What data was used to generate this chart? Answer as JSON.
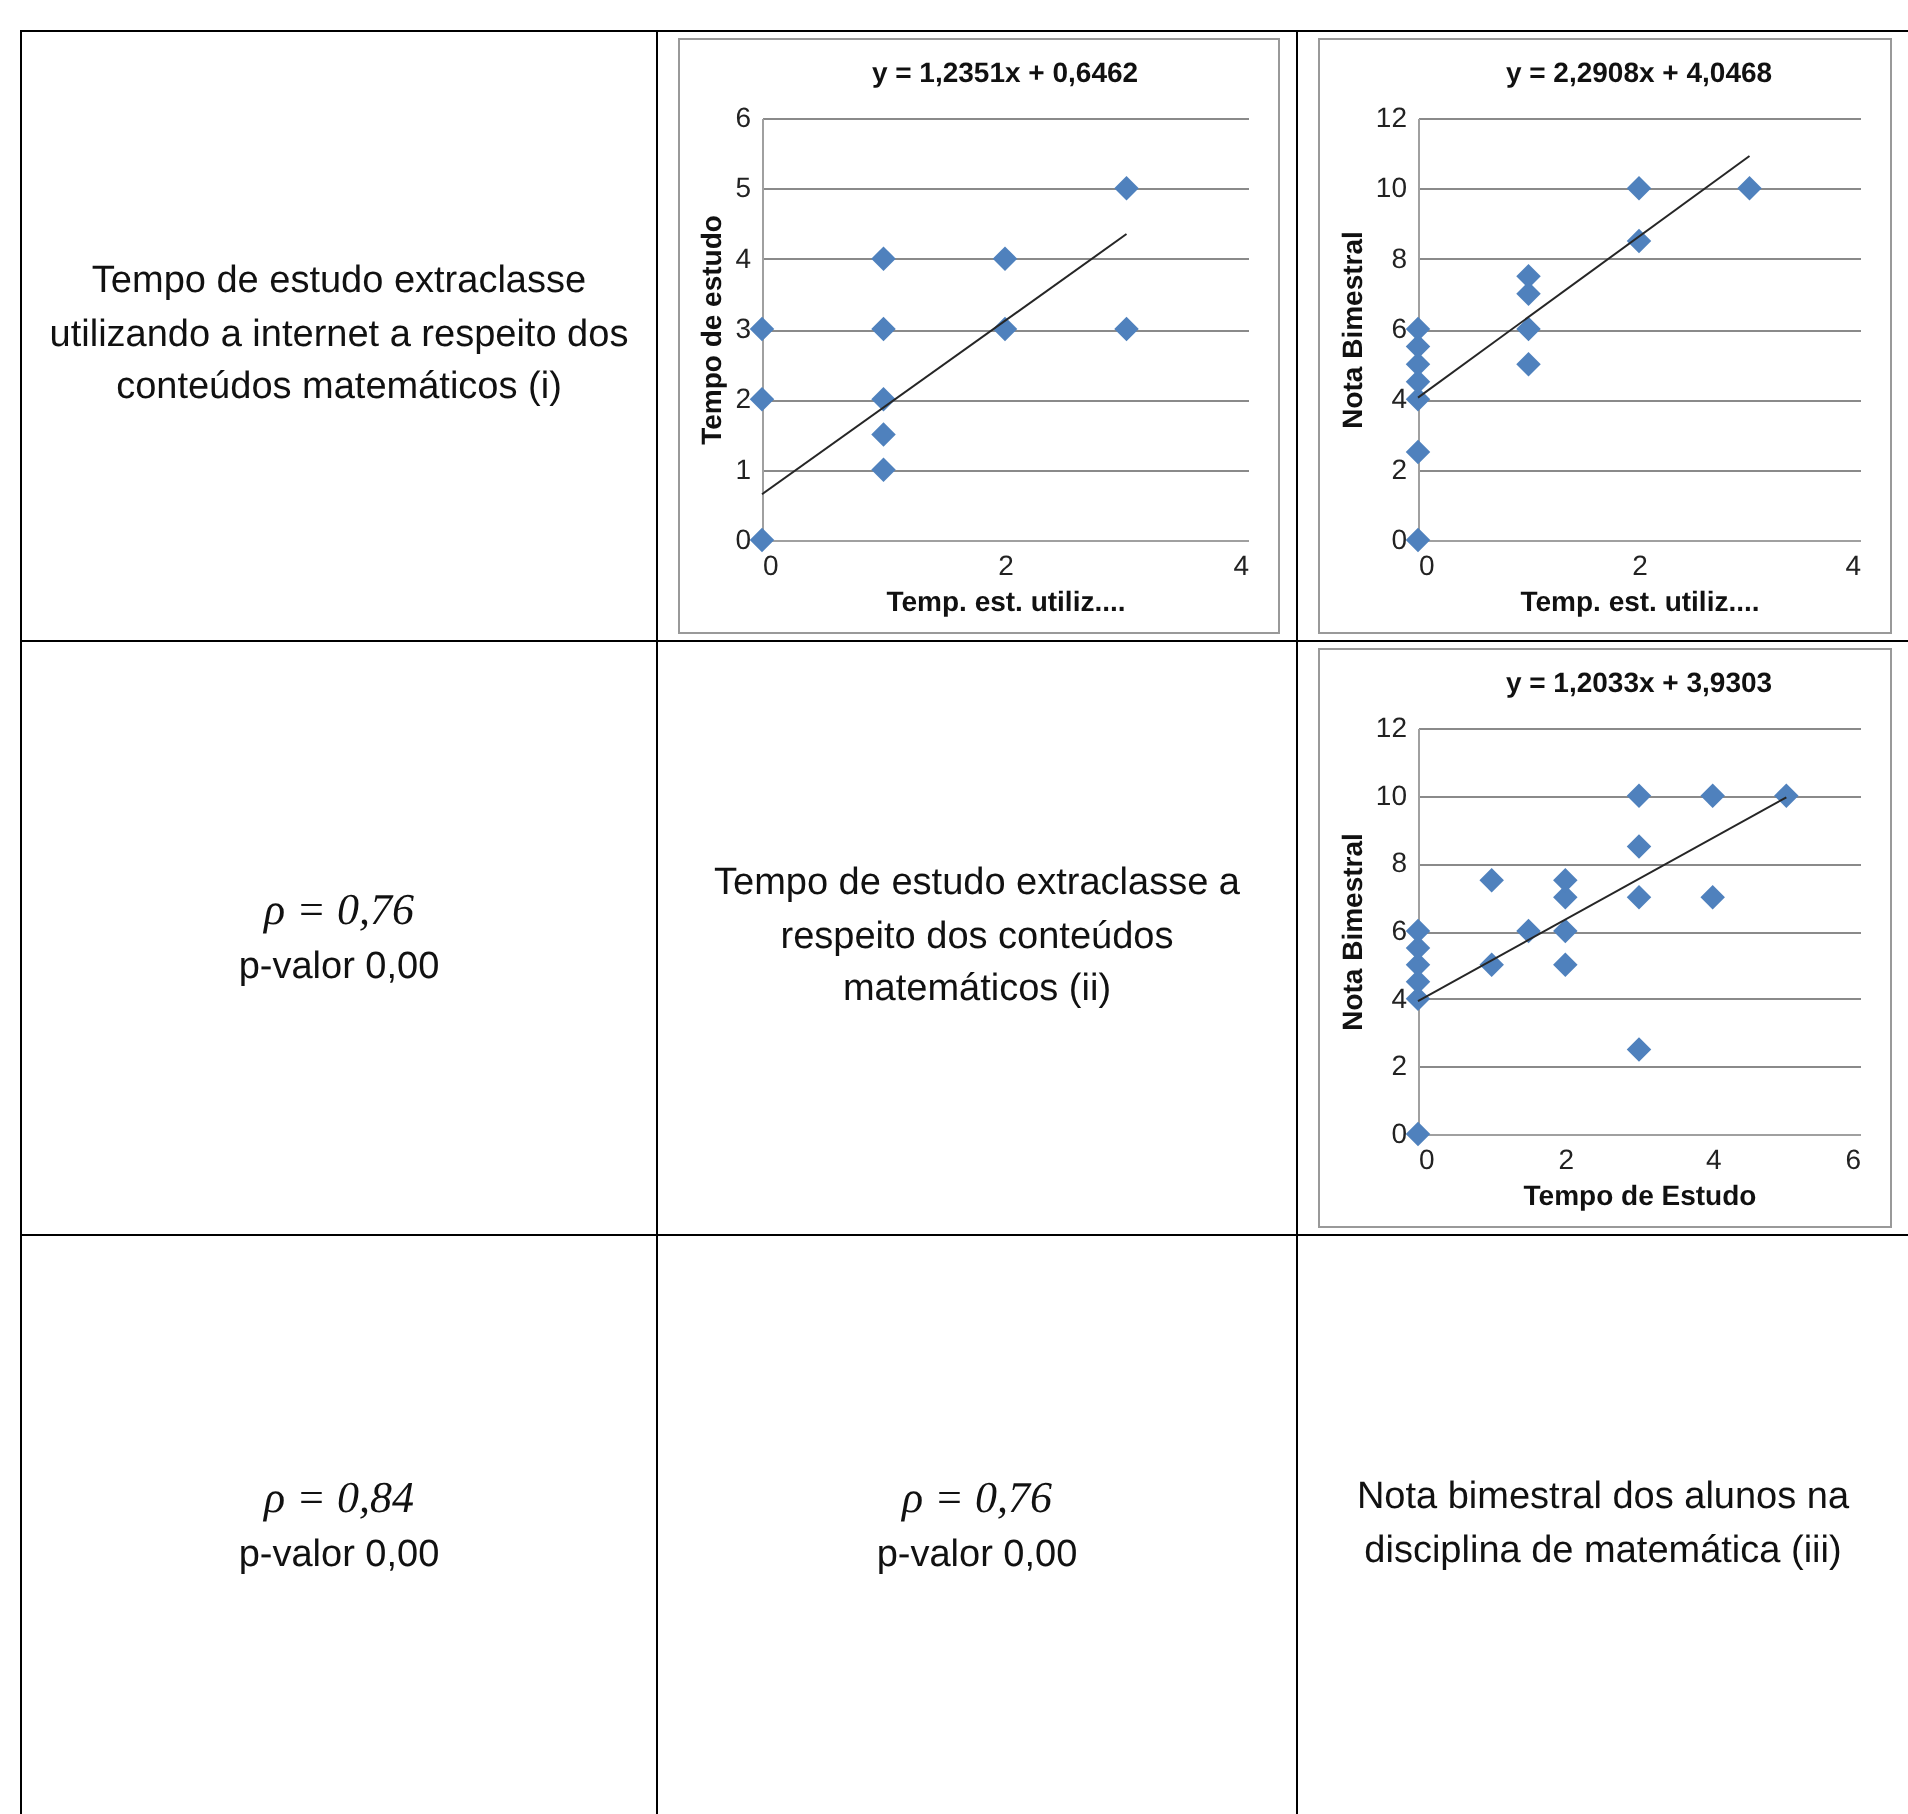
{
  "chart_data": [
    {
      "type": "other",
      "title": "Tempo de estudo extraclasse utilizando a internet a respeito dos conteúdos matemáticos (i)"
    },
    {
      "type": "scatter",
      "title": "y = 1,2351x + 0,6462",
      "xlabel": "Temp. est. utiliz....",
      "ylabel": "Tempo de estudo",
      "xlim": [
        0,
        4
      ],
      "xticks": [
        0,
        2,
        4
      ],
      "ylim": [
        0,
        6
      ],
      "yticks": [
        0,
        1,
        2,
        3,
        4,
        5,
        6
      ],
      "grid": "y",
      "series": [
        {
          "type": "scatter",
          "marker": "diamond",
          "color": "#4f81bd",
          "x": [
            0,
            0,
            0,
            1,
            1,
            1,
            1,
            1,
            2,
            2,
            3,
            3
          ],
          "values": [
            0,
            2,
            3,
            1,
            1.5,
            2,
            3,
            4,
            3,
            4,
            3,
            5
          ]
        },
        {
          "type": "line",
          "color": "#262626",
          "x": [
            0,
            3
          ],
          "values": [
            0.65,
            4.35
          ]
        }
      ]
    },
    {
      "type": "scatter",
      "title": "y = 2,2908x + 4,0468",
      "xlabel": "Temp. est. utiliz....",
      "ylabel": "Nota Bimestral",
      "xlim": [
        0,
        4
      ],
      "xticks": [
        0,
        2,
        4
      ],
      "ylim": [
        0,
        12
      ],
      "yticks": [
        0,
        2,
        4,
        6,
        8,
        10,
        12
      ],
      "grid": "y",
      "series": [
        {
          "type": "scatter",
          "marker": "diamond",
          "color": "#4f81bd",
          "x": [
            0,
            0,
            0,
            0,
            0,
            0,
            0,
            1,
            1,
            1,
            1,
            2,
            2,
            3
          ],
          "values": [
            0,
            2.5,
            4,
            4.5,
            5,
            5.5,
            6,
            5,
            6,
            7,
            7.5,
            8.5,
            10,
            10
          ]
        },
        {
          "type": "line",
          "color": "#262626",
          "x": [
            0,
            3
          ],
          "values": [
            4.05,
            10.92
          ]
        }
      ]
    },
    {
      "type": "other",
      "annotations": [
        "ρ = 0,76",
        "p-valor 0,00"
      ]
    },
    {
      "type": "other",
      "title": "Tempo de estudo extraclasse a respeito dos conteúdos matemáticos (ii)"
    },
    {
      "type": "scatter",
      "title": "y = 1,2033x + 3,9303",
      "xlabel": "Tempo de Estudo",
      "ylabel": "Nota Bimestral",
      "xlim": [
        0,
        6
      ],
      "xticks": [
        0,
        2,
        4,
        6
      ],
      "ylim": [
        0,
        12
      ],
      "yticks": [
        0,
        2,
        4,
        6,
        8,
        10,
        12
      ],
      "grid": "y",
      "series": [
        {
          "type": "scatter",
          "marker": "diamond",
          "color": "#4f81bd",
          "x": [
            0,
            0,
            0,
            0,
            0,
            0,
            1,
            1,
            1.5,
            2,
            2,
            2,
            2,
            3,
            3,
            3,
            3,
            4,
            4,
            5
          ],
          "values": [
            0,
            4,
            4.5,
            5,
            5.5,
            6,
            5,
            7.5,
            6,
            5,
            6,
            7,
            7.5,
            2.5,
            7,
            8.5,
            10,
            7,
            10,
            10
          ]
        },
        {
          "type": "line",
          "color": "#262626",
          "x": [
            0,
            5
          ],
          "values": [
            3.93,
            9.95
          ]
        }
      ]
    },
    {
      "type": "other",
      "annotations": [
        "ρ = 0,84",
        "p-valor 0,00"
      ]
    },
    {
      "type": "other",
      "annotations": [
        "ρ = 0,76",
        "p-valor 0,00"
      ]
    },
    {
      "type": "other",
      "title": "Nota bimestral dos alunos na disciplina de matemática (iii)"
    }
  ]
}
